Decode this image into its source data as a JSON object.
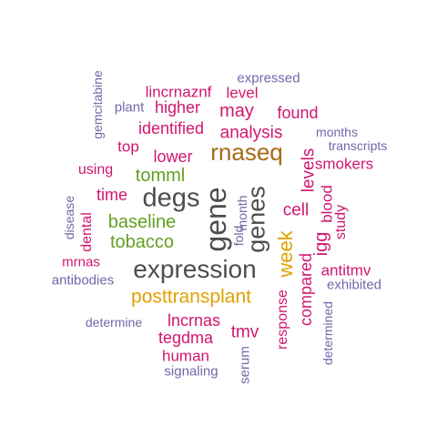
{
  "palette": {
    "gray": "#4d4d4d",
    "magenta": "#d1166f",
    "purple": "#7068a8",
    "gold": "#e0a100",
    "brown": "#a56b14",
    "green": "#63a021"
  },
  "words": [
    {
      "text": "expression",
      "color": "gray",
      "rotated": false
    },
    {
      "text": "gene",
      "color": "gray",
      "rotated": true
    },
    {
      "text": "genes",
      "color": "gray",
      "rotated": true
    },
    {
      "text": "degs",
      "color": "gray",
      "rotated": false
    },
    {
      "text": "rnaseq",
      "color": "brown",
      "rotated": false
    },
    {
      "text": "posttransplant",
      "color": "gold",
      "rotated": false
    },
    {
      "text": "week",
      "color": "gold",
      "rotated": true
    },
    {
      "text": "baseline",
      "color": "green",
      "rotated": false
    },
    {
      "text": "tobacco",
      "color": "green",
      "rotated": false
    },
    {
      "text": "tomml",
      "color": "green",
      "rotated": false
    },
    {
      "text": "analysis",
      "color": "magenta",
      "rotated": false
    },
    {
      "text": "identified",
      "color": "magenta",
      "rotated": false
    },
    {
      "text": "lower",
      "color": "magenta",
      "rotated": false
    },
    {
      "text": "higher",
      "color": "magenta",
      "rotated": false
    },
    {
      "text": "may",
      "color": "magenta",
      "rotated": false
    },
    {
      "text": "found",
      "color": "magenta",
      "rotated": false
    },
    {
      "text": "level",
      "color": "magenta",
      "rotated": false
    },
    {
      "text": "lincrnaznf",
      "color": "magenta",
      "rotated": false
    },
    {
      "text": "top",
      "color": "magenta",
      "rotated": false
    },
    {
      "text": "using",
      "color": "magenta",
      "rotated": false
    },
    {
      "text": "time",
      "color": "magenta",
      "rotated": false
    },
    {
      "text": "dental",
      "color": "magenta",
      "rotated": true
    },
    {
      "text": "mrnas",
      "color": "magenta",
      "rotated": false
    },
    {
      "text": "lncrnas",
      "color": "magenta",
      "rotated": false
    },
    {
      "text": "tegdma",
      "color": "magenta",
      "rotated": false
    },
    {
      "text": "human",
      "color": "magenta",
      "rotated": false
    },
    {
      "text": "tmv",
      "color": "magenta",
      "rotated": false
    },
    {
      "text": "cell",
      "color": "magenta",
      "rotated": false
    },
    {
      "text": "levels",
      "color": "magenta",
      "rotated": true
    },
    {
      "text": "smokers",
      "color": "magenta",
      "rotated": false
    },
    {
      "text": "blood",
      "color": "magenta",
      "rotated": true
    },
    {
      "text": "study",
      "color": "magenta",
      "rotated": true
    },
    {
      "text": "igg",
      "color": "magenta",
      "rotated": true
    },
    {
      "text": "compared",
      "color": "magenta",
      "rotated": true
    },
    {
      "text": "response",
      "color": "magenta",
      "rotated": true
    },
    {
      "text": "antitmv",
      "color": "magenta",
      "rotated": false
    },
    {
      "text": "expressed",
      "color": "purple",
      "rotated": false
    },
    {
      "text": "plant",
      "color": "purple",
      "rotated": false
    },
    {
      "text": "gemcitabine",
      "color": "purple",
      "rotated": true
    },
    {
      "text": "months",
      "color": "purple",
      "rotated": false
    },
    {
      "text": "transcripts",
      "color": "purple",
      "rotated": false
    },
    {
      "text": "disease",
      "color": "purple",
      "rotated": true
    },
    {
      "text": "antibodies",
      "color": "purple",
      "rotated": false
    },
    {
      "text": "exhibited",
      "color": "purple",
      "rotated": false
    },
    {
      "text": "determine",
      "color": "purple",
      "rotated": false
    },
    {
      "text": "determined",
      "color": "purple",
      "rotated": true
    },
    {
      "text": "signaling",
      "color": "purple",
      "rotated": false
    },
    {
      "text": "serum",
      "color": "purple",
      "rotated": true
    },
    {
      "text": "month",
      "color": "purple",
      "rotated": true
    },
    {
      "text": "fold",
      "color": "purple",
      "rotated": true
    }
  ]
}
